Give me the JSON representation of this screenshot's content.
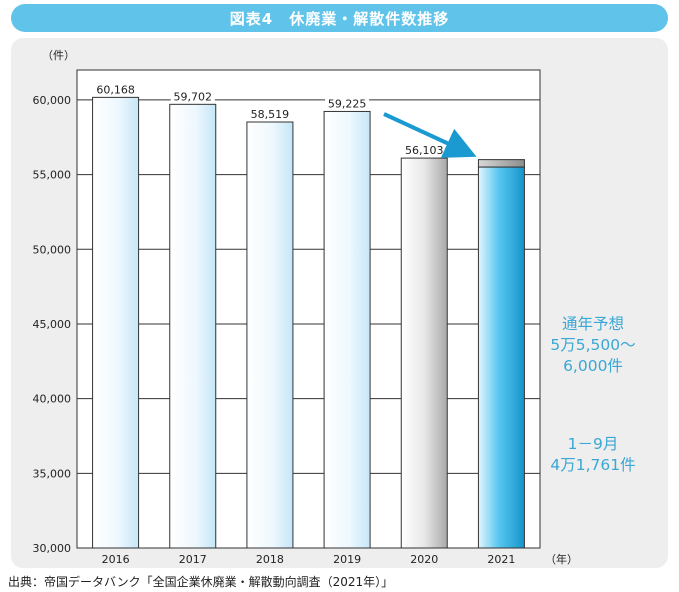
{
  "header": {
    "title": "図表4　休廃業・解散件数推移"
  },
  "source": "出典：帝国データバンク「全国企業休廃業・解散動向調査（2021年）」",
  "colors": {
    "accent": "#5fc3ea",
    "annotation": "#3aa7d4",
    "arrow": "#1a9ad1"
  },
  "chart_data": {
    "type": "bar",
    "categories": [
      "2016",
      "2017",
      "2018",
      "2019",
      "2020",
      "2021"
    ],
    "values": [
      60168,
      59702,
      58519,
      59225,
      56103,
      55761
    ],
    "labels": [
      "60,168",
      "59,702",
      "58,519",
      "59,225",
      "56,103",
      ""
    ],
    "ylim": [
      30000,
      62000
    ],
    "yticks": [
      30000,
      35000,
      40000,
      45000,
      50000,
      55000,
      60000
    ],
    "yticklabels": [
      "30,000",
      "35,000",
      "40,000",
      "45,000",
      "50,000",
      "55,000",
      "60,000"
    ],
    "ylabel": "（件）",
    "xlabel": "（年）",
    "forecast_2021_range": [
      55500,
      56000
    ],
    "grid": true,
    "annotations": {
      "forecast": [
        "通年予想",
        "5万5,500～",
        "6,000件"
      ],
      "actual": [
        "1－9月",
        "4万1,761件"
      ]
    }
  }
}
